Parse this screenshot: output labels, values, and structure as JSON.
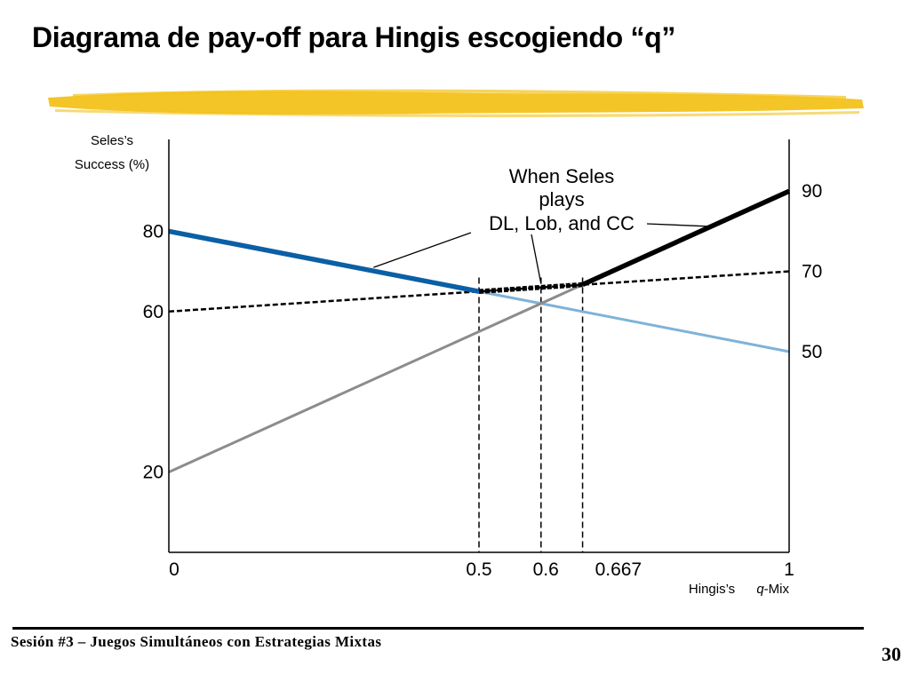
{
  "slide": {
    "title": "Diagrama de pay-off para Hingis escogiendo “q”",
    "footer": "Sesión #3 – Juegos Simultáneos con Estrategias Mixtas",
    "page_number": "30",
    "brush_color": "#f2c21b"
  },
  "chart_data": {
    "type": "line",
    "title": "",
    "ylabel_lines": [
      "Seles’s",
      "Success (%)"
    ],
    "xlabel_parts": {
      "prefix": "Hingis’s",
      "italic": "q",
      "suffix": "-Mix"
    },
    "xlim": [
      0,
      1
    ],
    "ylim": [
      0,
      100
    ],
    "y_ticks_left": [
      {
        "value": 80,
        "label": "80"
      },
      {
        "value": 60,
        "label": "60"
      },
      {
        "value": 20,
        "label": "20"
      }
    ],
    "y_ticks_right": [
      {
        "value": 90,
        "label": "90"
      },
      {
        "value": 70,
        "label": "70"
      },
      {
        "value": 50,
        "label": "50"
      }
    ],
    "x_ticks": [
      {
        "value": 0,
        "label": "0"
      },
      {
        "value": 0.5,
        "label": "0.5"
      },
      {
        "value": 0.6,
        "label": "0.6"
      },
      {
        "value": 0.667,
        "label": "0.667"
      },
      {
        "value": 1,
        "label": "1"
      }
    ],
    "series": [
      {
        "x": [
          0,
          1
        ],
        "y": [
          80,
          50
        ],
        "color": "#7fb2d8",
        "style": "solid"
      },
      {
        "x": [
          0,
          1
        ],
        "y": [
          20,
          90
        ],
        "color": "#8c8c8c",
        "style": "solid"
      },
      {
        "x": [
          0,
          1
        ],
        "y": [
          60,
          70
        ],
        "color": "#000000",
        "style": "dashed"
      }
    ],
    "upper_envelope": {
      "x": [
        0,
        0.5,
        0.667,
        1
      ],
      "y": [
        80,
        65,
        66.7,
        90
      ],
      "segment_colors": [
        "#0b5fa5",
        "#000000",
        "#000000"
      ],
      "segment_styles": [
        "solid",
        "dashed",
        "solid"
      ]
    },
    "vertical_guides": [
      0.5,
      0.6,
      0.667
    ],
    "annotation": {
      "lines": [
        "When Seles",
        "plays",
        "DL, Lob, and CC"
      ],
      "pointers_to_x": [
        0.33,
        0.6,
        0.88
      ]
    }
  }
}
